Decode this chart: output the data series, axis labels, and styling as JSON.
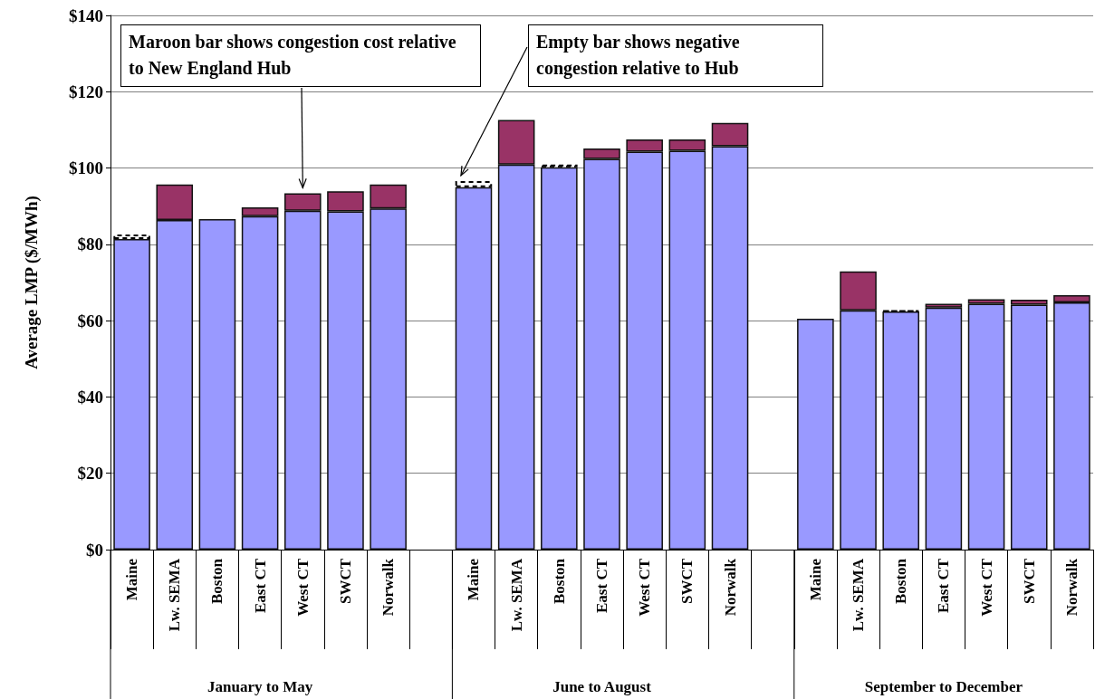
{
  "chart_data": {
    "type": "bar",
    "stacked": true,
    "ylabel": "Average LMP ($/MWh)",
    "categories": [
      "Maine",
      "Lw. SEMA",
      "Boston",
      "East CT",
      "West CT",
      "SWCT",
      "Norwalk",
      null,
      "Maine",
      "Lw. SEMA",
      "Boston",
      "East CT",
      "West CT",
      "SWCT",
      "Norwalk",
      null,
      "Maine",
      "Lw. SEMA",
      "Boston",
      "East CT",
      "West CT",
      "SWCT",
      "Norwalk"
    ],
    "series": [
      {
        "color": "#9999ff",
        "values": [
          81.4,
          86.4,
          86.6,
          87.4,
          88.8,
          88.6,
          89.4,
          null,
          95.0,
          100.9,
          100.2,
          102.4,
          104.3,
          104.5,
          105.7,
          null,
          60.5,
          62.7,
          62.4,
          63.4,
          64.4,
          64.2,
          64.8
        ]
      },
      {
        "color": "#993366",
        "values": [
          null,
          9.3,
          null,
          2.3,
          4.6,
          5.3,
          6.3,
          null,
          null,
          11.7,
          null,
          2.7,
          3.2,
          3.0,
          6.1,
          null,
          null,
          10.2,
          null,
          1.0,
          1.2,
          1.3,
          1.9
        ]
      },
      {
        "color": "#000000",
        "line_style": "dashed",
        "values": [
          1.2,
          null,
          null,
          null,
          null,
          null,
          null,
          null,
          1.6,
          null,
          0.7,
          null,
          null,
          null,
          null,
          null,
          null,
          null,
          0.3,
          null,
          null,
          null,
          null
        ]
      }
    ],
    "ylim": [
      0,
      140
    ],
    "yticks": [
      {
        "value": 0,
        "label": "$0"
      },
      {
        "value": 20,
        "label": "$20"
      },
      {
        "value": 40,
        "label": "$40"
      },
      {
        "value": 60,
        "label": "$60"
      },
      {
        "value": 80,
        "label": "$80"
      },
      {
        "value": 100,
        "label": "$100"
      },
      {
        "value": 120,
        "label": "$120"
      },
      {
        "value": 140,
        "label": "$140"
      }
    ],
    "grid": "y",
    "annotations": [
      "January to May",
      "June to August",
      "September to December",
      "Maroon bar shows congestion cost relative to New England Hub",
      "Empty bar shows negative congestion relative to Hub"
    ]
  }
}
